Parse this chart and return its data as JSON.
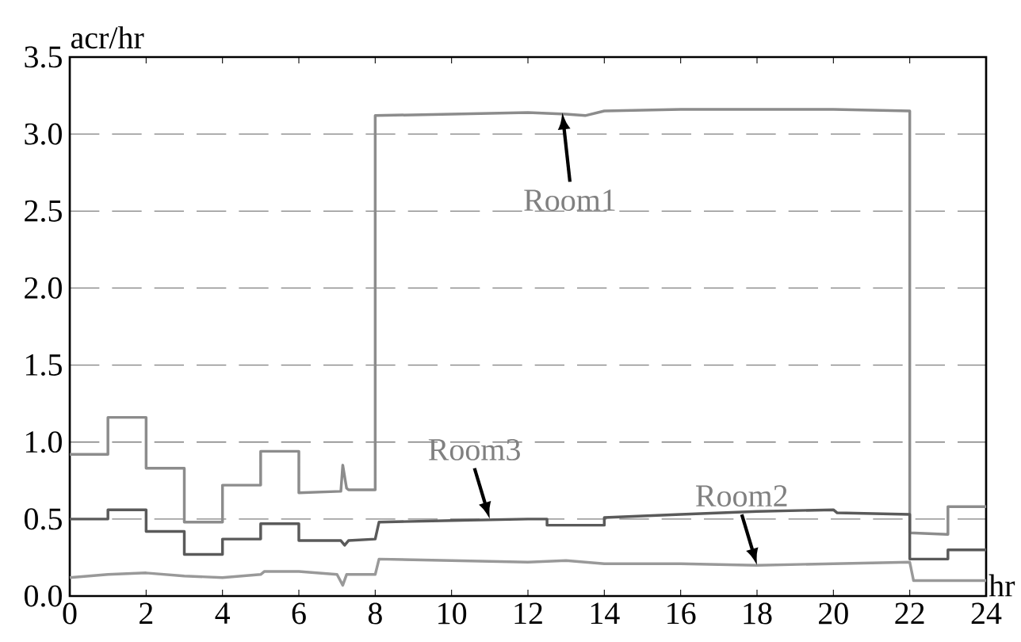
{
  "chart_data": {
    "type": "line",
    "xlabel": "hr",
    "ylabel": "acr/hr",
    "xlim": [
      0,
      24
    ],
    "xticks": [
      0,
      2,
      4,
      6,
      8,
      10,
      12,
      14,
      16,
      18,
      20,
      22,
      24
    ],
    "ylim": [
      0,
      3.5
    ],
    "yticks": [
      {
        "value": 0,
        "label": "0.0"
      },
      {
        "value": 0.5,
        "label": "0.5"
      },
      {
        "value": 1,
        "label": "1.0"
      },
      {
        "value": 1.5,
        "label": "1.5"
      },
      {
        "value": 2,
        "label": "2.0"
      },
      {
        "value": 2.5,
        "label": "2.5"
      },
      {
        "value": 3,
        "label": "3.0"
      },
      {
        "value": 3.5,
        "label": "3.5"
      }
    ],
    "grid": "y",
    "marker": "none",
    "line_style": "solid",
    "series": [
      {
        "color": "#8c8c8c",
        "x": [
          0,
          1,
          1,
          2,
          2,
          3,
          3,
          4,
          4,
          5,
          5,
          6,
          6,
          7.1,
          7.15,
          7.25,
          7.3,
          8,
          8,
          10,
          12,
          13,
          13.5,
          14,
          16,
          18,
          20,
          22,
          22,
          23,
          23,
          24
        ],
        "values": [
          0.92,
          0.92,
          1.16,
          1.16,
          0.83,
          0.83,
          0.48,
          0.48,
          0.72,
          0.72,
          0.94,
          0.94,
          0.67,
          0.68,
          0.85,
          0.7,
          0.69,
          0.69,
          3.12,
          3.13,
          3.14,
          3.13,
          3.12,
          3.15,
          3.16,
          3.16,
          3.16,
          3.15,
          0.41,
          0.4,
          0.58,
          0.58
        ]
      },
      {
        "color": "#5a5a5a",
        "x": [
          0,
          1,
          1,
          2,
          2,
          3,
          3,
          4,
          4,
          5,
          5,
          6,
          6,
          7.1,
          7.2,
          7.3,
          8,
          8.1,
          10,
          12,
          12.5,
          12.5,
          14,
          14,
          16,
          18,
          20,
          20.1,
          22,
          22,
          23,
          23,
          24
        ],
        "values": [
          0.5,
          0.5,
          0.56,
          0.56,
          0.42,
          0.42,
          0.27,
          0.27,
          0.37,
          0.37,
          0.47,
          0.47,
          0.36,
          0.36,
          0.33,
          0.36,
          0.37,
          0.48,
          0.49,
          0.5,
          0.5,
          0.46,
          0.46,
          0.51,
          0.53,
          0.55,
          0.56,
          0.54,
          0.53,
          0.24,
          0.24,
          0.3,
          0.3
        ]
      },
      {
        "color": "#999999",
        "x": [
          0,
          1,
          2,
          3,
          4,
          5,
          5.1,
          6,
          7,
          7.15,
          7.25,
          8,
          8.1,
          10,
          12,
          13,
          14,
          16,
          18,
          20,
          22,
          22.1,
          24
        ],
        "values": [
          0.12,
          0.14,
          0.15,
          0.13,
          0.12,
          0.14,
          0.16,
          0.16,
          0.14,
          0.07,
          0.14,
          0.14,
          0.24,
          0.23,
          0.22,
          0.23,
          0.21,
          0.21,
          0.2,
          0.21,
          0.22,
          0.1,
          0.1
        ]
      }
    ],
    "annotations": [
      {
        "text": "Room1",
        "x": 12.9,
        "y": 3.12
      },
      {
        "text": "Room3",
        "x": 11,
        "y": 0.5
      },
      {
        "text": "Room2",
        "x": 18,
        "y": 0.2
      }
    ]
  }
}
